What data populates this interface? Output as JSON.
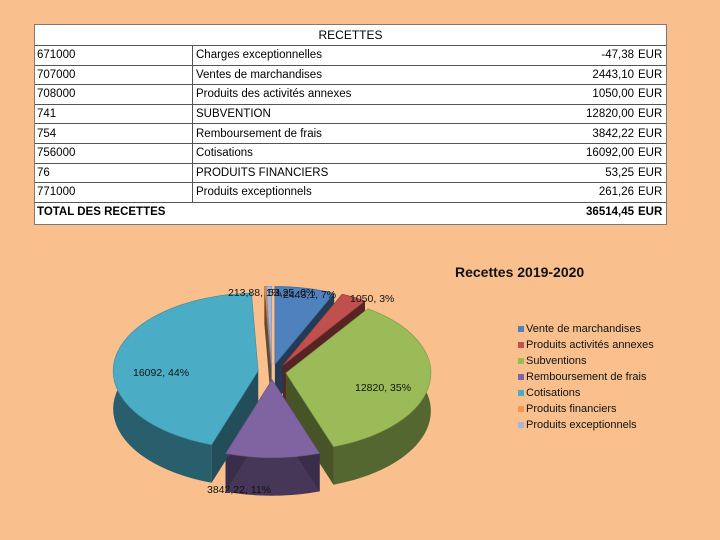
{
  "table": {
    "title": "RECETTES",
    "rows": [
      {
        "code": "671000",
        "label": "Charges exceptionnelles",
        "amount": "-47,38",
        "currency": "EUR"
      },
      {
        "code": "707000",
        "label": "Ventes de marchandises",
        "amount": "2443,10",
        "currency": "EUR"
      },
      {
        "code": "708000",
        "label": "Produits des activités annexes",
        "amount": "1050,00",
        "currency": "EUR"
      },
      {
        "code": "741",
        "label": "SUBVENTION",
        "amount": "12820,00",
        "currency": "EUR"
      },
      {
        "code": "754",
        "label": "Remboursement de frais",
        "amount": "3842,22",
        "currency": "EUR"
      },
      {
        "code": "756000",
        "label": "Cotisations",
        "amount": "16092,00",
        "currency": "EUR"
      },
      {
        "code": "76",
        "label": "PRODUITS FINANCIERS",
        "amount": "53,25",
        "currency": "EUR"
      },
      {
        "code": "771000",
        "label": "Produits exceptionnels",
        "amount": "261,26",
        "currency": "EUR"
      }
    ],
    "total": {
      "label": "TOTAL DES RECETTES",
      "amount": "36514,45",
      "currency": "EUR"
    }
  },
  "chart_data": {
    "type": "pie",
    "title": "Recettes 2019-2020",
    "legend_position": "right",
    "series": [
      {
        "name": "Vente de marchandises",
        "value": 2443.1,
        "color": "#4f81bd",
        "label": "2443,1, 7%"
      },
      {
        "name": "Produits activités annexes",
        "value": 1050,
        "color": "#c0504d",
        "label": "1050, 3%"
      },
      {
        "name": "Subventions",
        "value": 12820,
        "color": "#9bbb59",
        "label": "12820, 35%"
      },
      {
        "name": "Remboursement de frais",
        "value": 3842.22,
        "color": "#8064a2",
        "label": "3842,22, 11%"
      },
      {
        "name": "Cotisations",
        "value": 16092,
        "color": "#4bacc6",
        "label": "16092, 44%"
      },
      {
        "name": "Produits financiers",
        "value": 53.25,
        "color": "#f79646",
        "label": "53,25, 0%"
      },
      {
        "name": "Produits exceptionnels",
        "value": 213.88,
        "color": "#a5b6d6",
        "label": "213,88, 1%"
      }
    ]
  }
}
